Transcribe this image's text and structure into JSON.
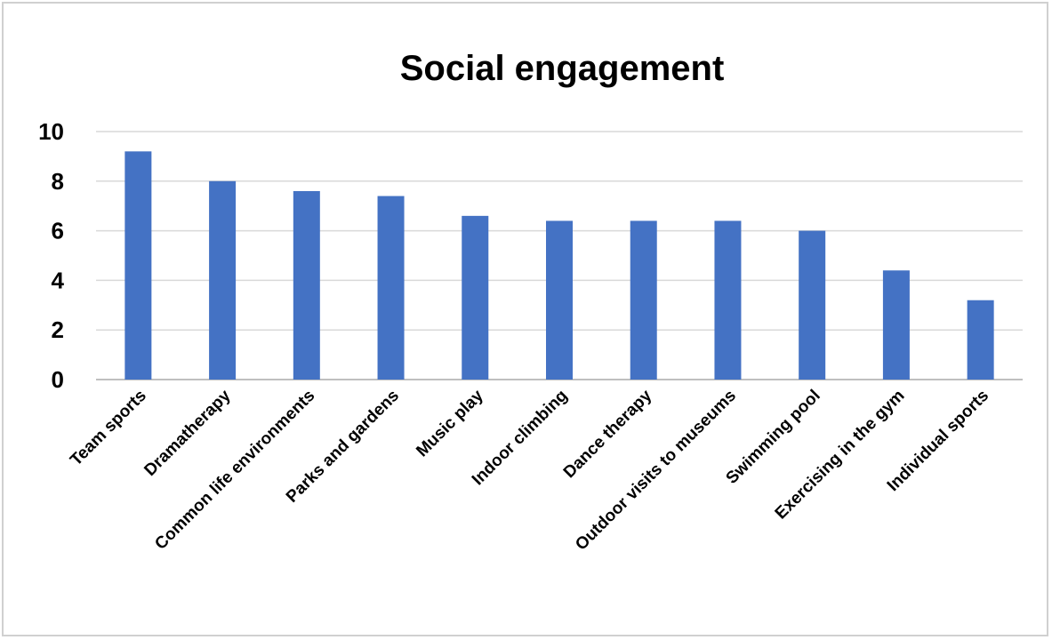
{
  "chart_data": {
    "type": "bar",
    "title": "Social engagement",
    "xlabel": "",
    "ylabel": "",
    "ylim": [
      0,
      10
    ],
    "yticks": [
      "0",
      "2",
      "4",
      "6",
      "8",
      "10"
    ],
    "grid": true,
    "legend": "none",
    "bar_color": "#4472C4",
    "categories": [
      "Team sports",
      "Dramatherapy",
      "Common life environments",
      "Parks and gardens",
      "Music play",
      "Indoor climbing",
      "Dance therapy",
      "Outdoor visits to museums",
      "Swimming pool",
      "Exercising in the gym",
      "Individual sports"
    ],
    "values": [
      9.2,
      8.0,
      7.6,
      7.4,
      6.6,
      6.4,
      6.4,
      6.4,
      6.0,
      4.4,
      3.2
    ]
  }
}
